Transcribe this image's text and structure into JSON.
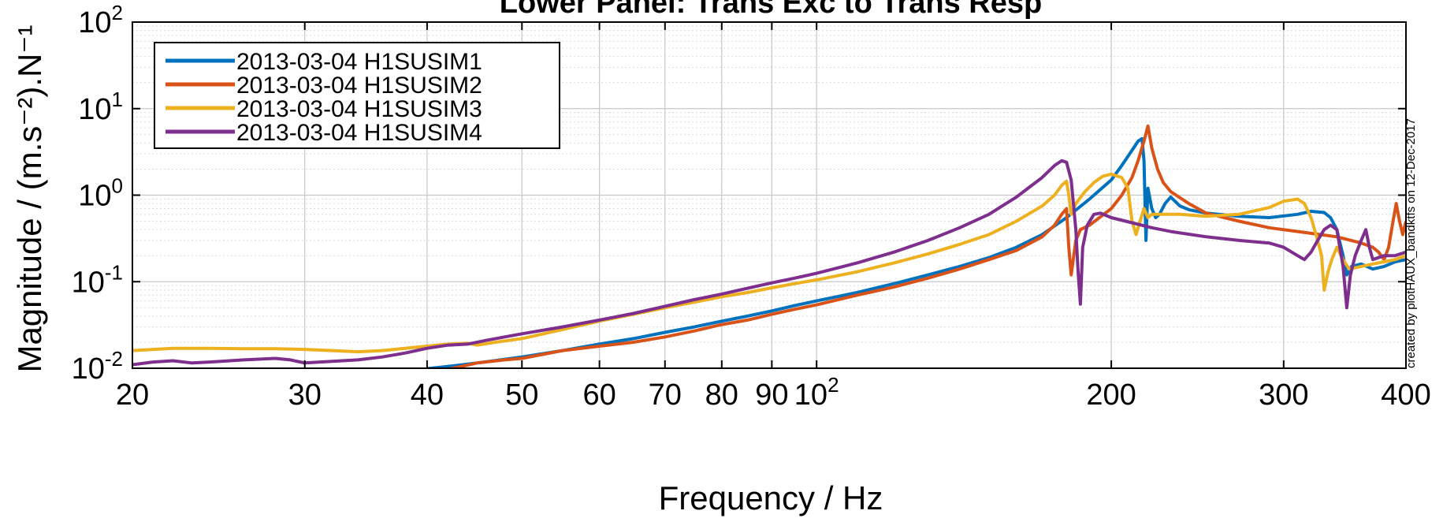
{
  "chart_data": {
    "type": "line",
    "title": "Lower Panel: Trans Exc to Trans Resp",
    "xlabel": "Frequency / Hz",
    "ylabel": "Magnitude / (m.s⁻²).N⁻¹",
    "xscale": "log",
    "yscale": "log",
    "xlim": [
      20,
      400
    ],
    "ylim": [
      0.01,
      100
    ],
    "x_ticks": [
      {
        "value": 20,
        "label": "20"
      },
      {
        "value": 30,
        "label": "30"
      },
      {
        "value": 40,
        "label": "40"
      },
      {
        "value": 50,
        "label": "50"
      },
      {
        "value": 60,
        "label": "60"
      },
      {
        "value": 70,
        "label": "70"
      },
      {
        "value": 80,
        "label": "80"
      },
      {
        "value": 90,
        "label": "90"
      },
      {
        "value": 100,
        "label": "10",
        "exp": "2"
      },
      {
        "value": 200,
        "label": "200"
      },
      {
        "value": 300,
        "label": "300"
      },
      {
        "value": 400,
        "label": "400"
      }
    ],
    "y_ticks": [
      {
        "value": 100,
        "label": "10",
        "exp": "2"
      },
      {
        "value": 10,
        "label": "10",
        "exp": "1"
      },
      {
        "value": 1,
        "label": "10",
        "exp": "0"
      },
      {
        "value": 0.1,
        "label": "10",
        "exp": "-1"
      },
      {
        "value": 0.01,
        "label": "10",
        "exp": "-2"
      }
    ],
    "grid": true,
    "legend_position": "top-left",
    "annotation": "created by plotHAUX_bandktfs on 12-Dec-2017",
    "series": [
      {
        "name": "2013-03-04 H1SUSIM1",
        "color": "#0072BD",
        "points": [
          [
            40,
            0.0099
          ],
          [
            42,
            0.0105
          ],
          [
            45,
            0.0115
          ],
          [
            50,
            0.0135
          ],
          [
            55,
            0.016
          ],
          [
            60,
            0.019
          ],
          [
            65,
            0.022
          ],
          [
            70,
            0.026
          ],
          [
            75,
            0.03
          ],
          [
            80,
            0.035
          ],
          [
            85,
            0.04
          ],
          [
            90,
            0.046
          ],
          [
            95,
            0.053
          ],
          [
            100,
            0.06
          ],
          [
            110,
            0.075
          ],
          [
            120,
            0.095
          ],
          [
            130,
            0.12
          ],
          [
            140,
            0.15
          ],
          [
            150,
            0.19
          ],
          [
            160,
            0.25
          ],
          [
            170,
            0.35
          ],
          [
            180,
            0.55
          ],
          [
            190,
            0.9
          ],
          [
            200,
            1.5
          ],
          [
            205,
            2.2
          ],
          [
            210,
            3.3
          ],
          [
            213,
            4.2
          ],
          [
            215,
            4.5
          ],
          [
            216,
            2.5
          ],
          [
            217,
            0.3
          ],
          [
            218,
            1.2
          ],
          [
            220,
            0.7
          ],
          [
            222,
            0.55
          ],
          [
            224,
            0.6
          ],
          [
            227,
            0.8
          ],
          [
            230,
            0.95
          ],
          [
            235,
            0.75
          ],
          [
            240,
            0.68
          ],
          [
            250,
            0.62
          ],
          [
            270,
            0.57
          ],
          [
            290,
            0.55
          ],
          [
            310,
            0.6
          ],
          [
            320,
            0.65
          ],
          [
            330,
            0.63
          ],
          [
            335,
            0.55
          ],
          [
            340,
            0.4
          ],
          [
            345,
            0.2
          ],
          [
            348,
            0.12
          ],
          [
            352,
            0.15
          ],
          [
            360,
            0.16
          ],
          [
            370,
            0.14
          ],
          [
            380,
            0.15
          ],
          [
            390,
            0.17
          ],
          [
            400,
            0.18
          ]
        ]
      },
      {
        "name": "2013-03-04 H1SUSIM2",
        "color": "#D95319",
        "points": [
          [
            42,
            0.0097
          ],
          [
            45,
            0.0115
          ],
          [
            48,
            0.0125
          ],
          [
            50,
            0.013
          ],
          [
            55,
            0.016
          ],
          [
            60,
            0.018
          ],
          [
            65,
            0.02
          ],
          [
            70,
            0.023
          ],
          [
            75,
            0.027
          ],
          [
            80,
            0.032
          ],
          [
            85,
            0.036
          ],
          [
            90,
            0.042
          ],
          [
            95,
            0.048
          ],
          [
            100,
            0.054
          ],
          [
            110,
            0.07
          ],
          [
            120,
            0.087
          ],
          [
            130,
            0.11
          ],
          [
            140,
            0.14
          ],
          [
            150,
            0.18
          ],
          [
            160,
            0.23
          ],
          [
            170,
            0.33
          ],
          [
            175,
            0.45
          ],
          [
            178,
            0.6
          ],
          [
            180,
            0.7
          ],
          [
            181,
            0.25
          ],
          [
            182,
            0.12
          ],
          [
            184,
            0.3
          ],
          [
            186,
            0.4
          ],
          [
            190,
            0.45
          ],
          [
            200,
            0.7
          ],
          [
            205,
            1.0
          ],
          [
            210,
            1.6
          ],
          [
            213,
            2.5
          ],
          [
            216,
            4.2
          ],
          [
            218,
            6.3
          ],
          [
            220,
            3.5
          ],
          [
            223,
            2.0
          ],
          [
            226,
            1.4
          ],
          [
            230,
            1.1
          ],
          [
            240,
            0.8
          ],
          [
            250,
            0.62
          ],
          [
            270,
            0.5
          ],
          [
            290,
            0.42
          ],
          [
            310,
            0.38
          ],
          [
            340,
            0.33
          ],
          [
            360,
            0.28
          ],
          [
            370,
            0.25
          ],
          [
            375,
            0.22
          ],
          [
            380,
            0.18
          ],
          [
            384,
            0.25
          ],
          [
            388,
            0.5
          ],
          [
            391,
            0.8
          ],
          [
            394,
            0.5
          ],
          [
            397,
            0.35
          ],
          [
            400,
            0.5
          ]
        ]
      },
      {
        "name": "2013-03-04 H1SUSIM3",
        "color": "#EDB120",
        "points": [
          [
            20,
            0.016
          ],
          [
            22,
            0.017
          ],
          [
            24,
            0.017
          ],
          [
            26,
            0.0168
          ],
          [
            28,
            0.0168
          ],
          [
            30,
            0.0165
          ],
          [
            32,
            0.016
          ],
          [
            34,
            0.0155
          ],
          [
            36,
            0.016
          ],
          [
            38,
            0.017
          ],
          [
            40,
            0.018
          ],
          [
            42,
            0.019
          ],
          [
            44,
            0.0195
          ],
          [
            45,
            0.0185
          ],
          [
            47,
            0.02
          ],
          [
            50,
            0.022
          ],
          [
            55,
            0.028
          ],
          [
            60,
            0.035
          ],
          [
            65,
            0.042
          ],
          [
            70,
            0.05
          ],
          [
            75,
            0.058
          ],
          [
            80,
            0.067
          ],
          [
            85,
            0.075
          ],
          [
            90,
            0.085
          ],
          [
            95,
            0.095
          ],
          [
            100,
            0.105
          ],
          [
            110,
            0.13
          ],
          [
            120,
            0.165
          ],
          [
            130,
            0.21
          ],
          [
            140,
            0.27
          ],
          [
            150,
            0.35
          ],
          [
            160,
            0.5
          ],
          [
            170,
            0.75
          ],
          [
            175,
            1.0
          ],
          [
            178,
            1.3
          ],
          [
            180,
            1.45
          ],
          [
            181,
            1.0
          ],
          [
            182,
            0.6
          ],
          [
            184,
            0.8
          ],
          [
            188,
            1.1
          ],
          [
            192,
            1.4
          ],
          [
            196,
            1.65
          ],
          [
            200,
            1.75
          ],
          [
            205,
            1.6
          ],
          [
            208,
            1.2
          ],
          [
            210,
            0.5
          ],
          [
            212,
            0.35
          ],
          [
            214,
            0.5
          ],
          [
            216,
            0.7
          ],
          [
            218,
            0.55
          ],
          [
            220,
            0.6
          ],
          [
            225,
            0.6
          ],
          [
            235,
            0.6
          ],
          [
            250,
            0.57
          ],
          [
            270,
            0.6
          ],
          [
            290,
            0.72
          ],
          [
            300,
            0.85
          ],
          [
            310,
            0.9
          ],
          [
            315,
            0.8
          ],
          [
            320,
            0.55
          ],
          [
            325,
            0.3
          ],
          [
            328,
            0.2
          ],
          [
            330,
            0.08
          ],
          [
            333,
            0.13
          ],
          [
            336,
            0.18
          ],
          [
            340,
            0.25
          ],
          [
            345,
            0.18
          ],
          [
            350,
            0.14
          ],
          [
            360,
            0.15
          ],
          [
            370,
            0.16
          ],
          [
            380,
            0.17
          ],
          [
            390,
            0.18
          ],
          [
            400,
            0.2
          ]
        ]
      },
      {
        "name": "2013-03-04 H1SUSIM4",
        "color": "#7E2F8E",
        "points": [
          [
            20,
            0.011
          ],
          [
            21,
            0.0118
          ],
          [
            22,
            0.0122
          ],
          [
            23,
            0.0115
          ],
          [
            24,
            0.0118
          ],
          [
            26,
            0.0125
          ],
          [
            28,
            0.013
          ],
          [
            29,
            0.0125
          ],
          [
            30,
            0.0115
          ],
          [
            32,
            0.012
          ],
          [
            34,
            0.0125
          ],
          [
            36,
            0.0135
          ],
          [
            38,
            0.015
          ],
          [
            40,
            0.017
          ],
          [
            42,
            0.0185
          ],
          [
            44,
            0.019
          ],
          [
            46,
            0.021
          ],
          [
            48,
            0.023
          ],
          [
            50,
            0.025
          ],
          [
            55,
            0.03
          ],
          [
            60,
            0.036
          ],
          [
            65,
            0.043
          ],
          [
            70,
            0.052
          ],
          [
            75,
            0.062
          ],
          [
            80,
            0.072
          ],
          [
            85,
            0.084
          ],
          [
            90,
            0.097
          ],
          [
            95,
            0.11
          ],
          [
            100,
            0.125
          ],
          [
            110,
            0.165
          ],
          [
            120,
            0.22
          ],
          [
            130,
            0.3
          ],
          [
            140,
            0.42
          ],
          [
            150,
            0.6
          ],
          [
            160,
            0.95
          ],
          [
            170,
            1.6
          ],
          [
            175,
            2.2
          ],
          [
            178,
            2.5
          ],
          [
            180,
            2.4
          ],
          [
            182,
            1.5
          ],
          [
            184,
            0.4
          ],
          [
            185,
            0.13
          ],
          [
            186,
            0.055
          ],
          [
            187,
            0.25
          ],
          [
            189,
            0.45
          ],
          [
            192,
            0.6
          ],
          [
            195,
            0.62
          ],
          [
            200,
            0.55
          ],
          [
            210,
            0.48
          ],
          [
            220,
            0.42
          ],
          [
            230,
            0.38
          ],
          [
            250,
            0.33
          ],
          [
            270,
            0.3
          ],
          [
            290,
            0.28
          ],
          [
            300,
            0.25
          ],
          [
            310,
            0.2
          ],
          [
            315,
            0.18
          ],
          [
            320,
            0.22
          ],
          [
            325,
            0.3
          ],
          [
            330,
            0.4
          ],
          [
            335,
            0.45
          ],
          [
            340,
            0.4
          ],
          [
            345,
            0.15
          ],
          [
            348,
            0.05
          ],
          [
            351,
            0.12
          ],
          [
            355,
            0.2
          ],
          [
            360,
            0.3
          ],
          [
            364,
            0.4
          ],
          [
            367,
            0.25
          ],
          [
            370,
            0.18
          ],
          [
            380,
            0.2
          ],
          [
            390,
            0.2
          ],
          [
            400,
            0.22
          ]
        ]
      }
    ]
  }
}
